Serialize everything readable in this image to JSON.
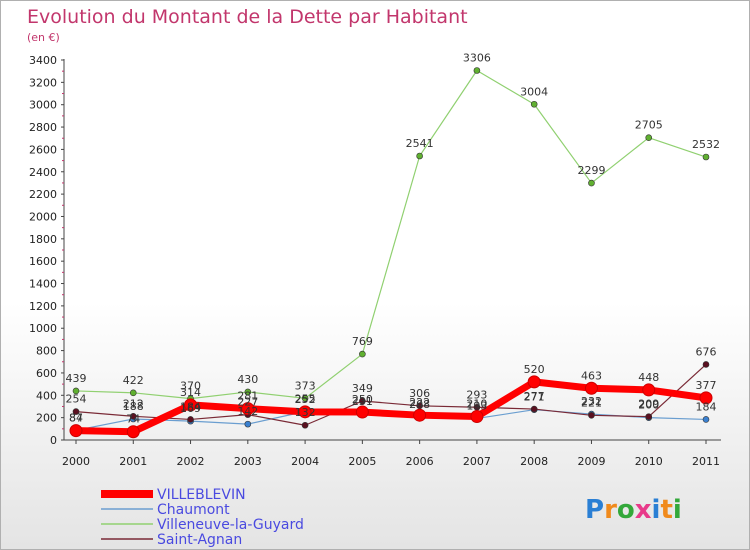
{
  "chart_data": {
    "type": "line",
    "title": "Evolution du Montant de la Dette par Habitant",
    "subtitle": "(en €)",
    "xlabel": "",
    "ylabel": "",
    "x": [
      "2000",
      "2001",
      "2002",
      "2003",
      "2004",
      "2005",
      "2006",
      "2007",
      "2008",
      "2009",
      "2010",
      "2011"
    ],
    "ylim": [
      0,
      3400
    ],
    "yticks": [
      0,
      200,
      400,
      600,
      800,
      1000,
      1200,
      1400,
      1600,
      1800,
      2000,
      2200,
      2400,
      2600,
      2800,
      3000,
      3200,
      3400
    ],
    "grid": false,
    "legend_position": "bottom-left",
    "series": [
      {
        "name": "Villeneuve-la-Guyard",
        "color": "#90d070",
        "marker": "#60b030",
        "width": 1.2,
        "values": [
          439,
          422,
          370,
          430,
          373,
          769,
          2541,
          3306,
          3004,
          2299,
          2705,
          2532
        ],
        "labels": [
          "439",
          "422",
          "370",
          "430",
          "373",
          "769",
          "2541",
          "3306",
          "3004",
          "2299",
          "2705",
          "2532"
        ]
      },
      {
        "name": "Chaumont",
        "color": "#6a9ed0",
        "marker": "#3a80d0",
        "width": 1.2,
        "values": [
          87,
          188,
          169,
          142,
          255,
          231,
          208,
          193,
          271,
          232,
          200,
          184
        ],
        "labels": [
          "87",
          "188",
          "169",
          "142",
          "255",
          "231",
          "208",
          "193",
          "271",
          "232",
          "200",
          "184"
        ]
      },
      {
        "name": "Saint-Agnan",
        "color": "#7a2a36",
        "marker": "#5a1020",
        "width": 1.2,
        "values": [
          254,
          212,
          184,
          227,
          132,
          349,
          306,
          293,
          277,
          221,
          209,
          676
        ],
        "labels": [
          "254",
          "212",
          "184",
          "227",
          "132",
          "349",
          "306",
          "293",
          "277",
          "221",
          "209",
          "676"
        ]
      },
      {
        "name": "VILLEBLEVIN",
        "color": "#ff0000",
        "marker": "#ff0000",
        "width": 7,
        "values": [
          84,
          74,
          314,
          281,
          252,
          250,
          222,
          210,
          520,
          463,
          448,
          377
        ],
        "labels": [
          "84",
          "74",
          "314",
          "281",
          "252",
          "250",
          "222",
          "210",
          "520",
          "463",
          "448",
          "377"
        ]
      }
    ],
    "legend_order": [
      "VILLEBLEVIN",
      "Chaumont",
      "Villeneuve-la-Guyard",
      "Saint-Agnan"
    ]
  },
  "logo": {
    "text": "Proxiti"
  }
}
